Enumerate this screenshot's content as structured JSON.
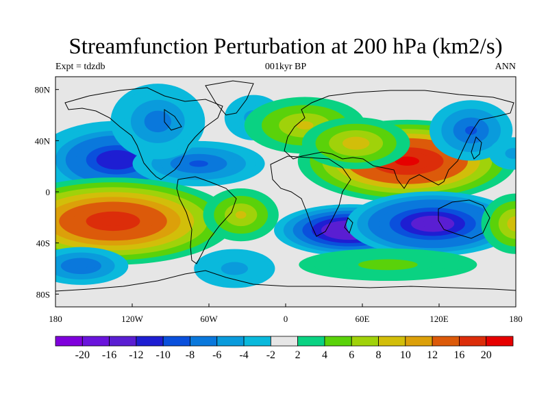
{
  "title": "Streamfunction Perturbation at 200 hPa (km2/s)",
  "subtitle_left": "Expt = tdzdb",
  "subtitle_center": "001kyr BP",
  "subtitle_right": "ANN",
  "map": {
    "projection": "cylindrical-equidistant",
    "lon_range": [
      -180,
      180
    ],
    "lat_range": [
      -90,
      90
    ],
    "background_color": "#e6e6e6",
    "x_ticks": [
      "180",
      "120W",
      "60W",
      "0",
      "60E",
      "120E",
      "180"
    ],
    "y_ticks": [
      "80N",
      "40N",
      "0",
      "40S",
      "80S"
    ]
  },
  "colorbar": {
    "colors": [
      "#7f00dc",
      "#6a14dc",
      "#5a1ed2",
      "#1e1ed2",
      "#0a50dc",
      "#0a78dc",
      "#0a9bdc",
      "#0ab9dc",
      "#e6e6e6",
      "#0ad282",
      "#5ad20a",
      "#a0d20a",
      "#d2be0a",
      "#dca00a",
      "#dc5a0a",
      "#dc2d0a",
      "#e60000"
    ],
    "labels": [
      "-20",
      "-16",
      "-12",
      "-10",
      "-8",
      "-6",
      "-4",
      "-2",
      "2",
      "4",
      "6",
      "8",
      "10",
      "12",
      "16",
      "20"
    ]
  },
  "field_blobs": [
    {
      "lon": -132,
      "lat": 25,
      "rlon": 38,
      "rlat": 18,
      "amp": -12
    },
    {
      "lon": -68,
      "lat": 22,
      "rlon": 35,
      "rlat": 12,
      "amp": -9
    },
    {
      "lon": -100,
      "lat": 55,
      "rlon": 25,
      "rlat": 20,
      "amp": -7
    },
    {
      "lon": -25,
      "lat": 58,
      "rlon": 18,
      "rlat": 14,
      "amp": -5
    },
    {
      "lon": 15,
      "lat": 52,
      "rlon": 32,
      "rlat": 15,
      "amp": 8
    },
    {
      "lon": 95,
      "lat": 24,
      "rlon": 45,
      "rlat": 17,
      "amp": 22
    },
    {
      "lon": 55,
      "lat": 38,
      "rlon": 25,
      "rlat": 12,
      "amp": 9
    },
    {
      "lon": 145,
      "lat": 48,
      "rlon": 22,
      "rlat": 16,
      "amp": -9
    },
    {
      "lon": 178,
      "lat": 30,
      "rlon": 15,
      "rlat": 10,
      "amp": -5
    },
    {
      "lon": -135,
      "lat": -23,
      "rlon": 50,
      "rlat": 18,
      "amp": 18
    },
    {
      "lon": -35,
      "lat": -18,
      "rlon": 20,
      "rlat": 14,
      "amp": 8
    },
    {
      "lon": 50,
      "lat": -30,
      "rlon": 35,
      "rlat": 12,
      "amp": -16
    },
    {
      "lon": 115,
      "lat": -25,
      "rlon": 40,
      "rlat": 15,
      "amp": -14
    },
    {
      "lon": 180,
      "lat": -25,
      "rlon": 16,
      "rlat": 14,
      "amp": 9
    },
    {
      "lon": -160,
      "lat": -58,
      "rlon": 25,
      "rlat": 10,
      "amp": -8
    },
    {
      "lon": -40,
      "lat": -60,
      "rlon": 25,
      "rlat": 12,
      "amp": -5
    },
    {
      "lon": 80,
      "lat": -57,
      "rlon": 55,
      "rlat": 10,
      "amp": 5
    }
  ]
}
